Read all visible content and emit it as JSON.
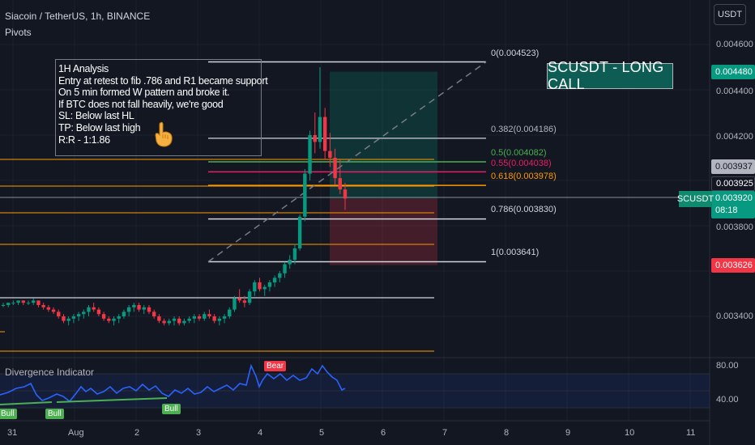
{
  "header": {
    "title": "Siacoin / TetherUS, 1h, BINANCE",
    "indicator": "Pivots",
    "currency_button": "USDT"
  },
  "y_axis": {
    "ticks": [
      "0.004600",
      "0.004400",
      "0.004200",
      "0.003800",
      "0.003400"
    ],
    "osc_ticks": [
      "80.00",
      "40.00"
    ]
  },
  "price_tags": {
    "tp": "0.004480",
    "stop": "0.003626",
    "current_high": "0.003937",
    "current_a": "0.003925",
    "current_price": "0.003920",
    "countdown": "08:18",
    "tp_color": "#089981",
    "stop_color": "#f23645",
    "current_color": "#089981"
  },
  "x_axis": {
    "labels": [
      "31",
      "Aug",
      "2",
      "3",
      "4",
      "5",
      "6",
      "7",
      "8",
      "9",
      "10",
      "11"
    ]
  },
  "fib_levels": [
    {
      "label": "0(0.004523)",
      "color": "#d1d4dc"
    },
    {
      "label": "0.382(0.004186)",
      "color": "#b2b5be"
    },
    {
      "label": "0.5(0.004082)",
      "color": "#4caf50"
    },
    {
      "label": "0.55(0.004038)",
      "color": "#e91e63"
    },
    {
      "label": "0.618(0.003978)",
      "color": "#ff9800"
    },
    {
      "label": "0.786(0.003830)",
      "color": "#d1d4dc"
    },
    {
      "label": "1(0.003641)",
      "color": "#d1d4dc"
    }
  ],
  "note": {
    "lines": [
      "1H Analysis",
      "Entry at retest to fib .786 and R1 became support",
      "On 5 min formed W pattern and broke it.",
      "If BTC does not fall heavily, we're good",
      "SL:  Below last HL",
      "TP: Below last high",
      "R:R - 1:1.86"
    ],
    "icon": "pointing-hand-icon"
  },
  "banner": {
    "text": "SCUSDT - LONG CALL"
  },
  "symbol_tag": "SCUSDT",
  "divergence": {
    "title": "Divergence Indicator",
    "bull_label": "Bull",
    "bear_label": "Bear",
    "bull_color": "#4caf50",
    "bear_color": "#f23645"
  },
  "chart_data": {
    "type": "candlestick",
    "symbol": "SCUSDT",
    "timeframe": "1h",
    "x": [
      "31",
      "Aug",
      "2",
      "3",
      "4",
      "5",
      "6",
      "7",
      "8",
      "9",
      "10",
      "11"
    ],
    "fib_retracement": [
      {
        "ratio": 0,
        "price": 0.004523
      },
      {
        "ratio": 0.382,
        "price": 0.004186
      },
      {
        "ratio": 0.5,
        "price": 0.004082
      },
      {
        "ratio": 0.55,
        "price": 0.004038
      },
      {
        "ratio": 0.618,
        "price": 0.003978
      },
      {
        "ratio": 0.786,
        "price": 0.00383
      },
      {
        "ratio": 1,
        "price": 0.003641
      }
    ],
    "position": {
      "type": "long",
      "entry": 0.00392,
      "target": 0.00448,
      "stop": 0.003626
    },
    "ylim": [
      0.00326,
      0.00466
    ],
    "candles": [
      [
        0.00345,
        0.00346,
        0.00344,
        0.00345
      ],
      [
        0.00345,
        0.00346,
        0.00344,
        0.00346
      ],
      [
        0.00346,
        0.00347,
        0.00345,
        0.00346
      ],
      [
        0.00346,
        0.00347,
        0.00345,
        0.00347
      ],
      [
        0.00347,
        0.00347,
        0.00345,
        0.00346
      ],
      [
        0.00346,
        0.00347,
        0.00345,
        0.00346
      ],
      [
        0.00346,
        0.00348,
        0.00345,
        0.00347
      ],
      [
        0.00347,
        0.00347,
        0.00344,
        0.00345
      ],
      [
        0.00345,
        0.00346,
        0.00343,
        0.00344
      ],
      [
        0.00344,
        0.00345,
        0.00342,
        0.00343
      ],
      [
        0.00343,
        0.00344,
        0.00341,
        0.00342
      ],
      [
        0.00342,
        0.00343,
        0.00339,
        0.0034
      ],
      [
        0.0034,
        0.00341,
        0.00337,
        0.00338
      ],
      [
        0.00338,
        0.0034,
        0.00336,
        0.00339
      ],
      [
        0.00339,
        0.00341,
        0.00337,
        0.0034
      ],
      [
        0.0034,
        0.00342,
        0.00338,
        0.00341
      ],
      [
        0.00341,
        0.00343,
        0.00339,
        0.00342
      ],
      [
        0.00342,
        0.00345,
        0.0034,
        0.00344
      ],
      [
        0.00344,
        0.00346,
        0.00342,
        0.00343
      ],
      [
        0.00343,
        0.00344,
        0.0034,
        0.00341
      ],
      [
        0.00341,
        0.00342,
        0.00338,
        0.00339
      ],
      [
        0.00339,
        0.0034,
        0.00337,
        0.00338
      ],
      [
        0.00338,
        0.0034,
        0.00336,
        0.00339
      ],
      [
        0.00339,
        0.00341,
        0.00337,
        0.0034
      ],
      [
        0.0034,
        0.00343,
        0.00339,
        0.00342
      ],
      [
        0.00342,
        0.00345,
        0.0034,
        0.00344
      ],
      [
        0.00344,
        0.00346,
        0.00342,
        0.00345
      ],
      [
        0.00345,
        0.00346,
        0.00342,
        0.00343
      ],
      [
        0.00343,
        0.00345,
        0.00341,
        0.00344
      ],
      [
        0.00344,
        0.00345,
        0.00341,
        0.00342
      ],
      [
        0.00342,
        0.00343,
        0.00339,
        0.0034
      ],
      [
        0.0034,
        0.00341,
        0.00337,
        0.00338
      ],
      [
        0.00338,
        0.00339,
        0.00336,
        0.00337
      ],
      [
        0.00337,
        0.00339,
        0.00336,
        0.00338
      ],
      [
        0.00338,
        0.0034,
        0.00336,
        0.00339
      ],
      [
        0.00339,
        0.0034,
        0.00336,
        0.00337
      ],
      [
        0.00337,
        0.00339,
        0.00336,
        0.00338
      ],
      [
        0.00338,
        0.0034,
        0.00337,
        0.00339
      ],
      [
        0.00339,
        0.00341,
        0.00337,
        0.0034
      ],
      [
        0.0034,
        0.00341,
        0.00338,
        0.00339
      ],
      [
        0.00339,
        0.00342,
        0.00338,
        0.00341
      ],
      [
        0.00341,
        0.00343,
        0.00339,
        0.0034
      ],
      [
        0.0034,
        0.00341,
        0.00337,
        0.00338
      ],
      [
        0.00338,
        0.0034,
        0.00336,
        0.00339
      ],
      [
        0.00339,
        0.00341,
        0.00337,
        0.0034
      ],
      [
        0.0034,
        0.00344,
        0.00339,
        0.00343
      ],
      [
        0.00343,
        0.00349,
        0.00342,
        0.00348
      ],
      [
        0.00348,
        0.00352,
        0.00346,
        0.00347
      ],
      [
        0.00347,
        0.00349,
        0.00344,
        0.00346
      ],
      [
        0.00346,
        0.00352,
        0.00345,
        0.00351
      ],
      [
        0.00351,
        0.00356,
        0.00349,
        0.00355
      ],
      [
        0.00355,
        0.00357,
        0.00351,
        0.00352
      ],
      [
        0.00352,
        0.00354,
        0.00349,
        0.00353
      ],
      [
        0.00353,
        0.00356,
        0.00351,
        0.00355
      ],
      [
        0.00355,
        0.00358,
        0.00353,
        0.00357
      ],
      [
        0.00357,
        0.0036,
        0.00355,
        0.00359
      ],
      [
        0.00359,
        0.00364,
        0.00357,
        0.00363
      ],
      [
        0.00363,
        0.00367,
        0.00361,
        0.00365
      ],
      [
        0.00365,
        0.00372,
        0.00363,
        0.0037
      ],
      [
        0.0037,
        0.00385,
        0.00369,
        0.00384
      ],
      [
        0.00384,
        0.00405,
        0.00382,
        0.00403
      ],
      [
        0.00403,
        0.00422,
        0.004,
        0.0042
      ],
      [
        0.0042,
        0.0043,
        0.00412,
        0.00417
      ],
      [
        0.00417,
        0.0045,
        0.00414,
        0.00428
      ],
      [
        0.00428,
        0.00432,
        0.00409,
        0.00413
      ],
      [
        0.00413,
        0.00421,
        0.00406,
        0.0041
      ],
      [
        0.0041,
        0.00414,
        0.00398,
        0.00401
      ],
      [
        0.00401,
        0.00409,
        0.00394,
        0.00396
      ],
      [
        0.00396,
        0.00399,
        0.00387,
        0.00392
      ]
    ]
  }
}
